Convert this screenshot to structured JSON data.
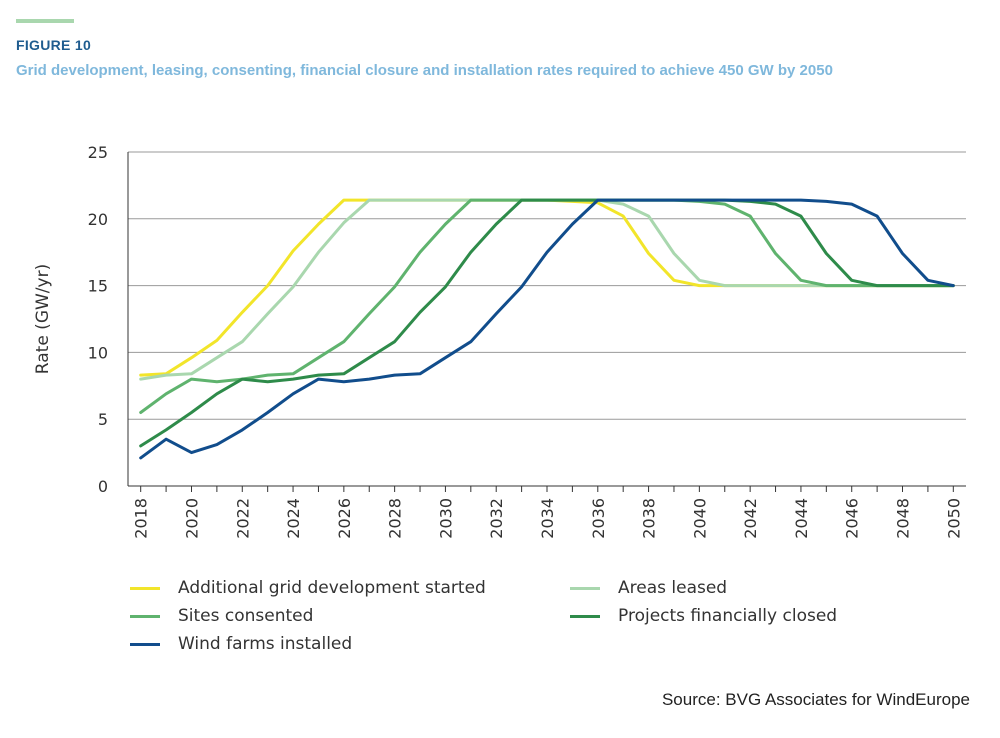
{
  "figure": {
    "label": "FIGURE 10",
    "title": "Grid development, leasing, consenting, financial closure and installation rates required to achieve 450 GW by 2050",
    "source": "Source: BVG Associates for WindEurope",
    "accent_color": "#a9d7ae"
  },
  "chart_data": {
    "type": "line",
    "ylabel": "Rate (GW/yr)",
    "xlabel": "",
    "ylim": [
      0,
      25
    ],
    "yticks": [
      0,
      5,
      10,
      15,
      20,
      25
    ],
    "xlim": [
      2017.5,
      2050.5
    ],
    "xticks": [
      2018,
      2020,
      2022,
      2024,
      2026,
      2028,
      2030,
      2032,
      2034,
      2036,
      2038,
      2040,
      2042,
      2044,
      2046,
      2048,
      2050
    ],
    "grid": "horizontal",
    "legend_position": "bottom",
    "x": [
      2018,
      2019,
      2020,
      2021,
      2022,
      2023,
      2024,
      2025,
      2026,
      2027,
      2028,
      2029,
      2030,
      2031,
      2032,
      2033,
      2034,
      2035,
      2036,
      2037,
      2038,
      2039,
      2040,
      2041,
      2042,
      2043,
      2044,
      2045,
      2046,
      2047,
      2048,
      2049,
      2050
    ],
    "series": [
      {
        "name": "Additional grid development started",
        "color": "#f2e52a",
        "values": [
          8.3,
          8.4,
          9.6,
          10.9,
          13,
          15,
          17.6,
          19.6,
          21.4,
          21.4,
          21.4,
          21.4,
          21.4,
          21.4,
          21.4,
          21.4,
          21.4,
          21.3,
          21.2,
          20.2,
          17.4,
          15.4,
          15,
          15,
          15,
          15,
          15,
          15,
          15,
          15,
          15,
          15,
          15
        ]
      },
      {
        "name": "Areas leased",
        "color": "#a9d7ae",
        "values": [
          8,
          8.3,
          8.4,
          9.6,
          10.8,
          12.9,
          14.9,
          17.5,
          19.7,
          21.4,
          21.4,
          21.4,
          21.4,
          21.4,
          21.4,
          21.4,
          21.4,
          21.4,
          21.4,
          21.1,
          20.2,
          17.4,
          15.4,
          15,
          15,
          15,
          15,
          15,
          15,
          15,
          15,
          15,
          15
        ]
      },
      {
        "name": "Sites consented",
        "color": "#5fb36e",
        "values": [
          5.5,
          6.9,
          8,
          7.8,
          8,
          8.3,
          8.4,
          9.6,
          10.8,
          12.9,
          14.9,
          17.5,
          19.6,
          21.4,
          21.4,
          21.4,
          21.4,
          21.4,
          21.4,
          21.4,
          21.4,
          21.4,
          21.3,
          21.1,
          20.2,
          17.4,
          15.4,
          15,
          15,
          15,
          15,
          15,
          15
        ]
      },
      {
        "name": "Projects financially closed",
        "color": "#2e8b4a",
        "values": [
          3,
          4.2,
          5.5,
          6.9,
          8,
          7.8,
          8,
          8.3,
          8.4,
          9.6,
          10.8,
          13,
          14.9,
          17.5,
          19.6,
          21.4,
          21.4,
          21.4,
          21.4,
          21.4,
          21.4,
          21.4,
          21.4,
          21.4,
          21.3,
          21.1,
          20.2,
          17.4,
          15.4,
          15,
          15,
          15,
          15
        ]
      },
      {
        "name": "Wind farms installed",
        "color": "#114d8c",
        "values": [
          2.1,
          3.5,
          2.5,
          3.1,
          4.2,
          5.5,
          6.9,
          8,
          7.8,
          8,
          8.3,
          8.4,
          9.6,
          10.8,
          12.9,
          14.9,
          17.5,
          19.6,
          21.4,
          21.4,
          21.4,
          21.4,
          21.4,
          21.4,
          21.4,
          21.4,
          21.4,
          21.3,
          21.1,
          20.2,
          17.4,
          15.4,
          15
        ]
      }
    ]
  }
}
